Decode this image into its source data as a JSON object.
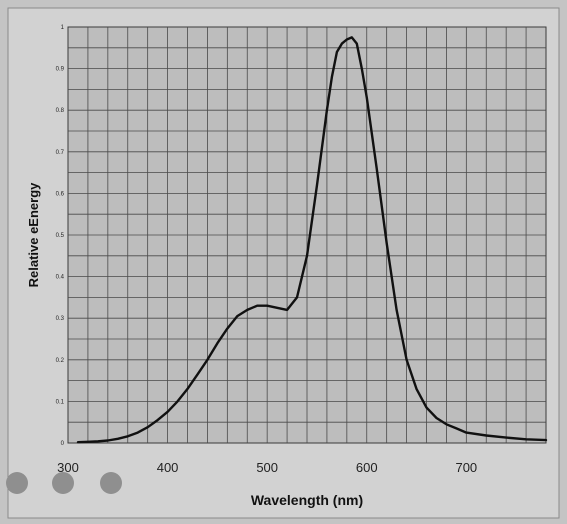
{
  "chart_data": {
    "type": "line",
    "title": "",
    "xlabel": "Wavelength (nm)",
    "ylabel": "Relative eEnergy",
    "xlim": [
      300,
      780
    ],
    "ylim": [
      0,
      1
    ],
    "x_ticks": [
      300,
      400,
      500,
      600,
      700
    ],
    "x_tick_labels": [
      "300",
      "400",
      "500",
      "600",
      "700"
    ],
    "y_ticks": [
      0,
      0.1,
      0.2,
      0.3,
      0.4,
      0.5,
      0.6,
      0.7,
      0.8,
      0.9,
      1
    ],
    "y_tick_labels": [
      "0",
      "0.1",
      "0.2",
      "0.3",
      "0.4",
      "0.5",
      "0.6",
      "0.7",
      "0.8",
      "0.9",
      "1"
    ],
    "grid": true,
    "series": [
      {
        "color": "#111111",
        "x": [
          310,
          320,
          330,
          340,
          350,
          360,
          370,
          380,
          390,
          400,
          410,
          420,
          430,
          440,
          450,
          460,
          470,
          480,
          490,
          500,
          510,
          520,
          530,
          540,
          550,
          560,
          565,
          570,
          575,
          580,
          585,
          590,
          595,
          600,
          610,
          620,
          630,
          640,
          650,
          660,
          670,
          680,
          690,
          700,
          720,
          740,
          760,
          780
        ],
        "y": [
          0.002,
          0.003,
          0.004,
          0.006,
          0.01,
          0.016,
          0.025,
          0.038,
          0.055,
          0.075,
          0.1,
          0.13,
          0.165,
          0.2,
          0.24,
          0.275,
          0.305,
          0.32,
          0.33,
          0.33,
          0.325,
          0.32,
          0.35,
          0.45,
          0.62,
          0.8,
          0.88,
          0.94,
          0.96,
          0.97,
          0.975,
          0.96,
          0.9,
          0.83,
          0.66,
          0.48,
          0.32,
          0.2,
          0.13,
          0.085,
          0.06,
          0.045,
          0.035,
          0.025,
          0.018,
          0.013,
          0.009,
          0.007
        ]
      }
    ]
  }
}
